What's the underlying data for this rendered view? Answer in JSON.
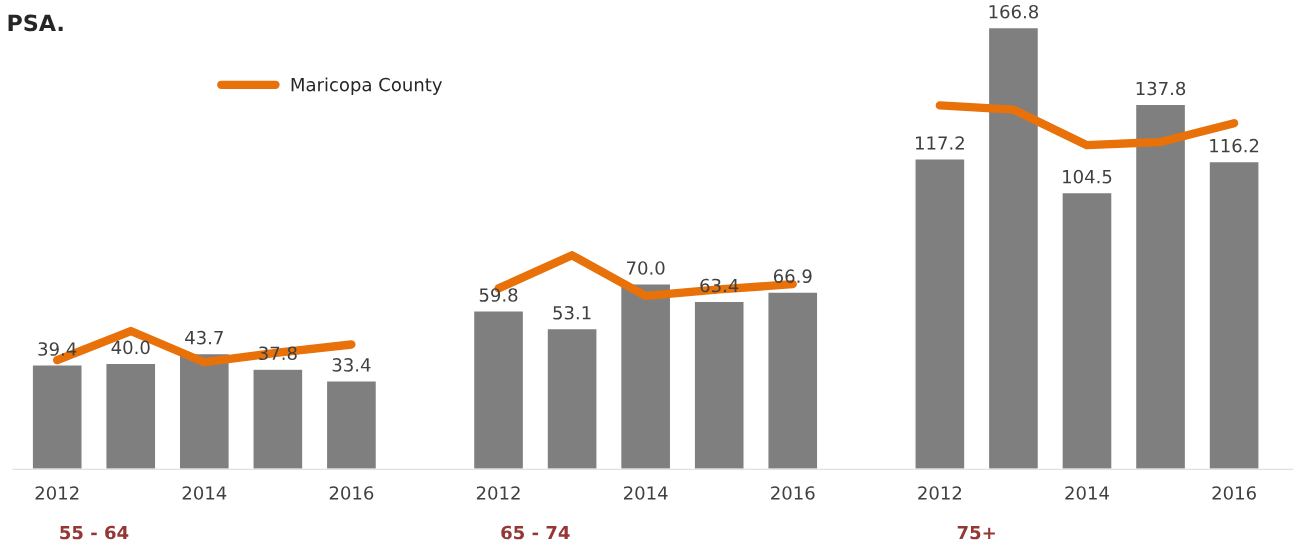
{
  "chart_data": {
    "type": "bar",
    "title": "PSA.",
    "categories": [
      "2012",
      null,
      "2014",
      null,
      "2016",
      null,
      "2012",
      null,
      "2014",
      null,
      "2016",
      null,
      "2012",
      null,
      "2014",
      null,
      "2016"
    ],
    "series": [
      {
        "color": "#7f7f7f",
        "values": [
          39.4,
          40.0,
          43.7,
          37.8,
          33.4,
          null,
          59.8,
          53.1,
          70.0,
          63.4,
          66.9,
          null,
          117.2,
          166.8,
          104.5,
          137.8,
          116.2
        ],
        "value_labels": [
          "39.4",
          "40.0",
          "43.7",
          "37.8",
          "33.4",
          null,
          "59.8",
          "53.1",
          "70.0",
          "63.4",
          "66.9",
          null,
          "117.2",
          "166.8",
          "104.5",
          "137.8",
          "116.2"
        ]
      },
      {
        "type": "line",
        "name": "Maricopa County",
        "color": "#e8710a",
        "values": [
          41.2,
          52.2,
          40.4,
          44.0,
          47.1,
          null,
          68.3,
          80.8,
          65.5,
          67.9,
          69.9,
          null,
          137.4,
          135.8,
          122.4,
          123.6,
          130.7
        ]
      }
    ],
    "legend": "top left",
    "annotations": [
      "55 - 64",
      "65 - 74",
      "75+"
    ]
  }
}
